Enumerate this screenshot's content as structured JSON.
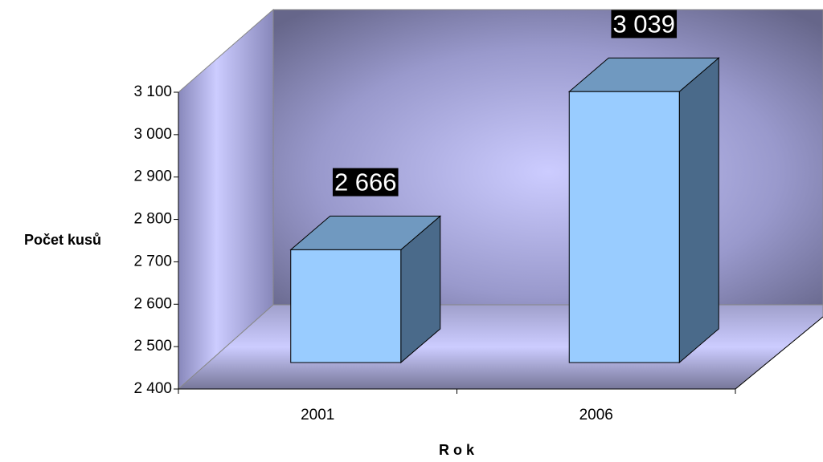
{
  "chart_data": {
    "type": "bar3d",
    "categories": [
      "2001",
      "2006"
    ],
    "values": [
      2666,
      3039
    ],
    "value_labels": [
      "2 666",
      "3 039"
    ],
    "ylabel": "Počet kusů",
    "xlabel": "R o k",
    "color": "#99ccff",
    "ylim": [
      2400,
      3100
    ],
    "yticks": [
      {
        "value": 2400,
        "label": "2 400"
      },
      {
        "value": 2500,
        "label": "2 500"
      },
      {
        "value": 2600,
        "label": "2 600"
      },
      {
        "value": 2700,
        "label": "2 700"
      },
      {
        "value": 2800,
        "label": "2 800"
      },
      {
        "value": 2900,
        "label": "2 900"
      },
      {
        "value": 3000,
        "label": "3 000"
      },
      {
        "value": 3100,
        "label": "3 100"
      }
    ]
  }
}
